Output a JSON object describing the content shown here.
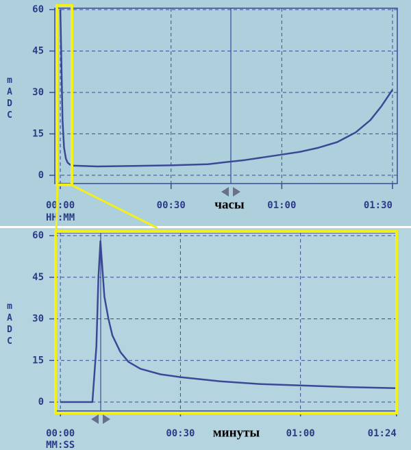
{
  "chart_data": [
    {
      "type": "line",
      "y_label": "mADC",
      "x_unit_label": "HH:MM",
      "annotation": "часы",
      "x": [
        0,
        0.3,
        0.6,
        1,
        1.5,
        2,
        3,
        10,
        20,
        30,
        40,
        45,
        50,
        55,
        60,
        65,
        70,
        75,
        80,
        84,
        87,
        90
      ],
      "values": [
        60,
        40,
        20,
        10,
        6,
        4.5,
        3.5,
        3.2,
        3.4,
        3.6,
        4,
        4.8,
        5.5,
        6.5,
        7.5,
        8.5,
        10,
        12,
        15.5,
        20,
        25,
        31
      ],
      "color": "#3b4896",
      "xlim": [
        -1.5,
        91.3
      ],
      "xticks": [
        {
          "value": 0,
          "label": "00:00"
        },
        {
          "value": 30,
          "label": "00:30"
        },
        {
          "value": 60,
          "label": "01:00"
        },
        {
          "value": 90,
          "label": "01:30"
        }
      ],
      "ylim": [
        -3,
        60.5
      ],
      "yticks": [
        0,
        15,
        30,
        45,
        60
      ],
      "grid": true
    },
    {
      "type": "line",
      "y_label": "mADC",
      "x_unit_label": "MM:SS",
      "annotation": "минуты",
      "x": [
        0,
        8,
        9,
        9.5,
        10,
        10.5,
        11,
        12,
        13,
        15,
        17,
        20,
        25,
        30,
        40,
        50,
        60,
        70,
        84
      ],
      "values": [
        0,
        0,
        20,
        45,
        58,
        48,
        38,
        30,
        24,
        18,
        14.5,
        12,
        10,
        9,
        7.5,
        6.5,
        6,
        5.5,
        5
      ],
      "color": "#3b4896",
      "xlim": [
        -1.4,
        84.2
      ],
      "xticks": [
        {
          "value": 0,
          "label": "00:00"
        },
        {
          "value": 30,
          "label": "00:30"
        },
        {
          "value": 60,
          "label": "01:00"
        },
        {
          "value": 84,
          "label": "01:24"
        }
      ],
      "ylim": [
        -3.2,
        61
      ],
      "yticks": [
        0,
        15,
        30,
        45,
        60
      ],
      "grid": true
    }
  ]
}
